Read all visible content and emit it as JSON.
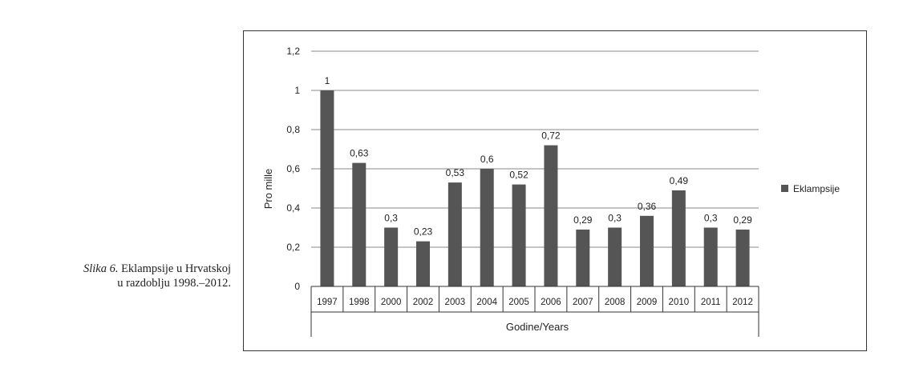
{
  "caption": {
    "lead": "Slika 6.",
    "line1_rest": " Eklampsije u Hrvatskoj",
    "line2": "u razdoblju 1998.–2012."
  },
  "colors": {
    "bar": "#555555",
    "grid": "#888888",
    "axis": "#333333"
  },
  "chart_data": {
    "type": "bar",
    "categories": [
      "1997",
      "1998",
      "2000",
      "2002",
      "2003",
      "2004",
      "2005",
      "2006",
      "2007",
      "2008",
      "2009",
      "2010",
      "2011",
      "2012"
    ],
    "series": [
      {
        "name": "Eklampsije",
        "values": [
          1,
          0.63,
          0.3,
          0.23,
          0.53,
          0.6,
          0.52,
          0.72,
          0.29,
          0.3,
          0.36,
          0.49,
          0.3,
          0.29
        ]
      }
    ],
    "data_labels": [
      "1",
      "0,63",
      "0,3",
      "0,23",
      "0,53",
      "0,6",
      "0,52",
      "0,72",
      "0,29",
      "0,3",
      "0,36",
      "0,49",
      "0,3",
      "0,29"
    ],
    "ylim": [
      0,
      1.2
    ],
    "yticks": [
      0,
      0.2,
      0.4,
      0.6,
      0.8,
      1,
      1.2
    ],
    "ytick_labels": [
      "0",
      "0,2",
      "0,4",
      "0,6",
      "0,8",
      "1",
      "1,2"
    ],
    "xlabel": "Godine/Years",
    "ylabel": "Pro mille",
    "grid": true,
    "legend": {
      "position": "right",
      "label": "Eklampsije"
    }
  }
}
